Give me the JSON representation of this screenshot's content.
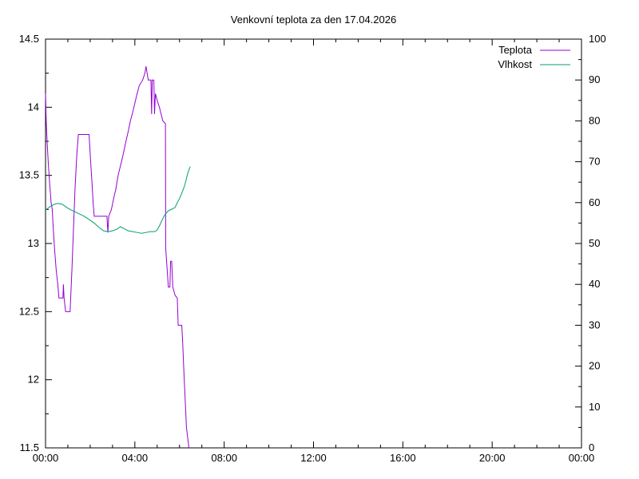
{
  "title": "Venkovní teplota za den 17.04.2026",
  "legend": [
    {
      "label": "Teplota",
      "color": "#9400d3"
    },
    {
      "label": "Vlhkost",
      "color": "#009e73"
    }
  ],
  "axes": {
    "x": {
      "tick_labels": [
        "00:00",
        "04:00",
        "08:00",
        "12:00",
        "16:00",
        "20:00",
        "00:00"
      ],
      "major_hours": [
        0,
        4,
        8,
        12,
        16,
        20,
        24
      ],
      "minor_step_hours": 1,
      "range_hours": [
        0,
        24
      ]
    },
    "y_left": {
      "tick_labels": [
        "14.5",
        "14",
        "13.5",
        "13",
        "12.5",
        "12",
        "11.5"
      ],
      "major_values": [
        14.5,
        14,
        13.5,
        13,
        12.5,
        12,
        11.5
      ],
      "minor_step": 0.25,
      "range": [
        11.5,
        14.5
      ]
    },
    "y_right": {
      "tick_labels": [
        "100",
        "90",
        "80",
        "70",
        "60",
        "50",
        "40",
        "30",
        "20",
        "10",
        "0"
      ],
      "major_values": [
        100,
        90,
        80,
        70,
        60,
        50,
        40,
        30,
        20,
        10,
        0
      ],
      "minor_step": 5,
      "range": [
        0,
        100
      ]
    }
  },
  "chart_data": {
    "type": "line",
    "title": "Venkovní teplota za den 17.04.2026",
    "xlabel": "",
    "ylabel_left": "",
    "ylabel_right": "",
    "x_unit": "hours",
    "x_range_hours": [
      0,
      24
    ],
    "y_left_range": [
      11.5,
      14.5
    ],
    "y_right_range": [
      0,
      100
    ],
    "grid": false,
    "legend_position": "top-right-inside",
    "series": [
      {
        "name": "Teplota",
        "axis": "left",
        "unit": "°C",
        "color": "#9400d3",
        "points": [
          [
            0.0,
            14.1
          ],
          [
            0.03,
            13.9
          ],
          [
            0.07,
            13.75
          ],
          [
            0.12,
            13.6
          ],
          [
            0.18,
            13.45
          ],
          [
            0.25,
            13.3
          ],
          [
            0.3,
            13.25
          ],
          [
            0.35,
            13.1
          ],
          [
            0.4,
            12.97
          ],
          [
            0.48,
            12.8
          ],
          [
            0.55,
            12.7
          ],
          [
            0.6,
            12.6
          ],
          [
            0.78,
            12.6
          ],
          [
            0.8,
            12.7
          ],
          [
            0.83,
            12.6
          ],
          [
            0.9,
            12.5
          ],
          [
            1.1,
            12.5
          ],
          [
            1.18,
            12.8
          ],
          [
            1.25,
            13.1
          ],
          [
            1.32,
            13.4
          ],
          [
            1.4,
            13.65
          ],
          [
            1.47,
            13.8
          ],
          [
            1.95,
            13.8
          ],
          [
            2.02,
            13.6
          ],
          [
            2.08,
            13.45
          ],
          [
            2.13,
            13.3
          ],
          [
            2.18,
            13.2
          ],
          [
            2.75,
            13.2
          ],
          [
            2.79,
            13.08
          ],
          [
            2.83,
            13.2
          ],
          [
            2.95,
            13.25
          ],
          [
            3.05,
            13.33
          ],
          [
            3.15,
            13.4
          ],
          [
            3.25,
            13.5
          ],
          [
            3.4,
            13.6
          ],
          [
            3.5,
            13.67
          ],
          [
            3.6,
            13.75
          ],
          [
            3.7,
            13.82
          ],
          [
            3.8,
            13.9
          ],
          [
            3.9,
            13.96
          ],
          [
            4.0,
            14.03
          ],
          [
            4.1,
            14.1
          ],
          [
            4.2,
            14.16
          ],
          [
            4.35,
            14.2
          ],
          [
            4.45,
            14.25
          ],
          [
            4.5,
            14.3
          ],
          [
            4.55,
            14.25
          ],
          [
            4.6,
            14.2
          ],
          [
            4.72,
            14.2
          ],
          [
            4.75,
            13.95
          ],
          [
            4.78,
            14.2
          ],
          [
            4.85,
            14.2
          ],
          [
            4.88,
            13.95
          ],
          [
            4.92,
            14.1
          ],
          [
            5.0,
            14.05
          ],
          [
            5.1,
            14.0
          ],
          [
            5.25,
            13.9
          ],
          [
            5.37,
            13.88
          ],
          [
            5.38,
            12.97
          ],
          [
            5.45,
            12.8
          ],
          [
            5.5,
            12.68
          ],
          [
            5.57,
            12.68
          ],
          [
            5.6,
            12.87
          ],
          [
            5.65,
            12.87
          ],
          [
            5.7,
            12.68
          ],
          [
            5.8,
            12.62
          ],
          [
            5.9,
            12.6
          ],
          [
            5.94,
            12.4
          ],
          [
            6.1,
            12.4
          ],
          [
            6.14,
            12.28
          ],
          [
            6.19,
            12.08
          ],
          [
            6.26,
            11.83
          ],
          [
            6.31,
            11.65
          ],
          [
            6.37,
            11.57
          ],
          [
            6.42,
            11.5
          ]
        ]
      },
      {
        "name": "Vlhkost",
        "axis": "right",
        "unit": "%",
        "color": "#009e73",
        "points": [
          [
            0.0,
            58.2
          ],
          [
            0.2,
            59.0
          ],
          [
            0.4,
            59.6
          ],
          [
            0.55,
            59.8
          ],
          [
            0.75,
            59.6
          ],
          [
            0.95,
            58.8
          ],
          [
            1.15,
            58.2
          ],
          [
            1.45,
            57.4
          ],
          [
            1.75,
            56.6
          ],
          [
            2.0,
            55.7
          ],
          [
            2.2,
            54.9
          ],
          [
            2.4,
            53.9
          ],
          [
            2.6,
            53.1
          ],
          [
            2.8,
            52.9
          ],
          [
            3.0,
            53.1
          ],
          [
            3.2,
            53.5
          ],
          [
            3.35,
            54.1
          ],
          [
            3.5,
            53.7
          ],
          [
            3.7,
            53.1
          ],
          [
            3.9,
            52.9
          ],
          [
            4.1,
            52.7
          ],
          [
            4.3,
            52.5
          ],
          [
            4.5,
            52.7
          ],
          [
            4.7,
            52.9
          ],
          [
            4.9,
            52.9
          ],
          [
            5.0,
            53.3
          ],
          [
            5.1,
            54.3
          ],
          [
            5.2,
            55.5
          ],
          [
            5.3,
            56.6
          ],
          [
            5.4,
            57.4
          ],
          [
            5.5,
            58.0
          ],
          [
            5.65,
            58.4
          ],
          [
            5.8,
            58.8
          ],
          [
            5.9,
            60.0
          ],
          [
            6.0,
            61.0
          ],
          [
            6.1,
            62.3
          ],
          [
            6.2,
            63.7
          ],
          [
            6.28,
            65.2
          ],
          [
            6.35,
            66.8
          ],
          [
            6.42,
            68.0
          ],
          [
            6.48,
            68.8
          ]
        ]
      }
    ]
  }
}
